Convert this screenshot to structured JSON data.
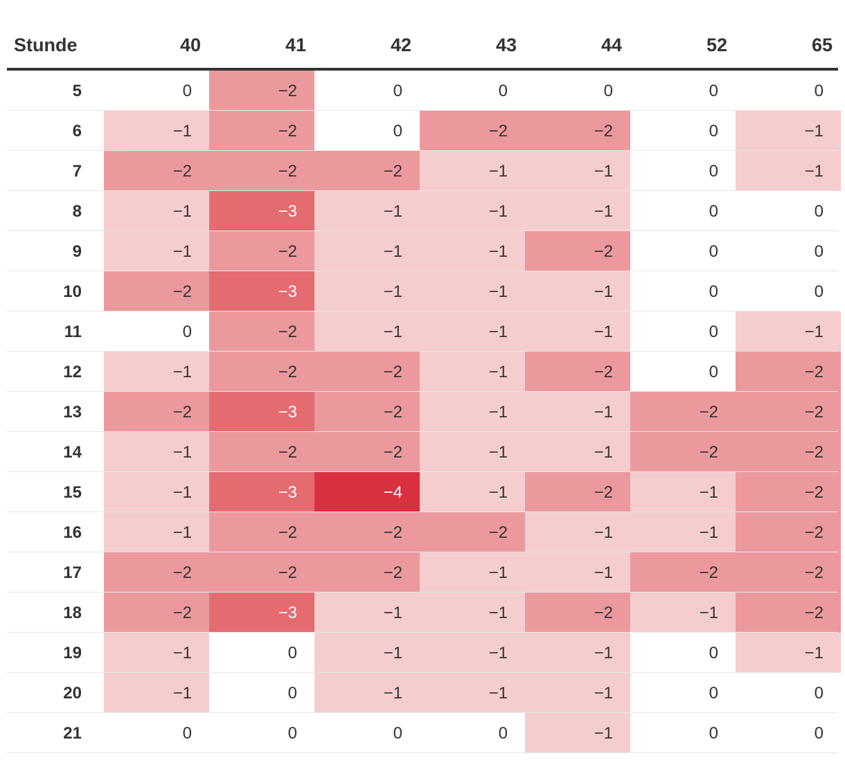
{
  "chart_data": {
    "type": "heatmap",
    "row_header": "Stunde",
    "columns": [
      "40",
      "41",
      "42",
      "43",
      "44",
      "52",
      "65"
    ],
    "rows": [
      "5",
      "6",
      "7",
      "8",
      "9",
      "10",
      "11",
      "12",
      "13",
      "14",
      "15",
      "16",
      "17",
      "18",
      "19",
      "20",
      "21"
    ],
    "values": [
      [
        0,
        -2,
        0,
        0,
        0,
        0,
        0
      ],
      [
        -1,
        -2,
        0,
        -2,
        -2,
        0,
        -1
      ],
      [
        -2,
        -2,
        -2,
        -1,
        -1,
        0,
        -1
      ],
      [
        -1,
        -3,
        -1,
        -1,
        -1,
        0,
        0
      ],
      [
        -1,
        -2,
        -1,
        -1,
        -2,
        0,
        0
      ],
      [
        -2,
        -3,
        -1,
        -1,
        -1,
        0,
        0
      ],
      [
        0,
        -2,
        -1,
        -1,
        -1,
        0,
        -1
      ],
      [
        -1,
        -2,
        -2,
        -1,
        -2,
        0,
        -2
      ],
      [
        -2,
        -3,
        -2,
        -1,
        -1,
        -2,
        -2
      ],
      [
        -1,
        -2,
        -2,
        -1,
        -1,
        -2,
        -2
      ],
      [
        -1,
        -3,
        -4,
        -1,
        -2,
        -1,
        -2
      ],
      [
        -1,
        -2,
        -2,
        -2,
        -1,
        -1,
        -2
      ],
      [
        -2,
        -2,
        -2,
        -1,
        -1,
        -2,
        -2
      ],
      [
        -2,
        -3,
        -1,
        -1,
        -2,
        -1,
        -2
      ],
      [
        -1,
        0,
        -1,
        -1,
        -1,
        0,
        -1
      ],
      [
        -1,
        0,
        -1,
        -1,
        -1,
        0,
        0
      ],
      [
        0,
        0,
        0,
        0,
        -1,
        0,
        0
      ]
    ],
    "color_scale": {
      "0": "#ffffff",
      "-1": "#f6cdcf",
      "-2": "#ec999e",
      "-3": "#e46c71",
      "-4": "#d9313f"
    },
    "text_color_dark": "#333333",
    "text_color_light": "#ffffff"
  }
}
